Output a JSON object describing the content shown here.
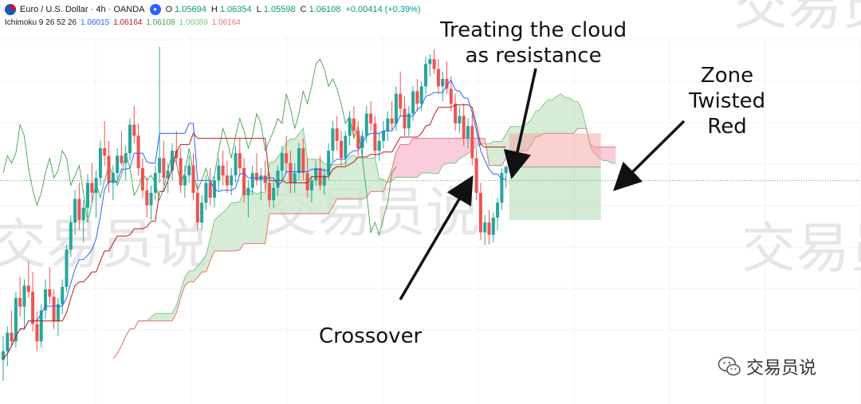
{
  "header": {
    "symbol": "Euro / U.S. Dollar · 4h · OANDA",
    "ohlc": {
      "o_label": "O",
      "o": "1.05694",
      "h_label": "H",
      "h": "1.06354",
      "l_label": "L",
      "l": "1.05598",
      "c_label": "C",
      "c": "1.06108",
      "change": "+0.00414 (+0.39%)"
    },
    "indicator": {
      "name": "Ichimoku 9 26 52 26",
      "values": [
        "1.06015",
        "1.06164",
        "1.06108",
        "1.06089",
        "1.06164"
      ],
      "colors": [
        "#2962ff",
        "#b71c1c",
        "#43a047",
        "#a5d6a7",
        "#ef9a9a"
      ]
    }
  },
  "annotations": {
    "resistance_line1": "Treating the cloud",
    "resistance_line2": "as resistance",
    "crossover": "Crossover",
    "zone_line1": "Zone",
    "zone_line2": "Twisted",
    "zone_line3": "Red"
  },
  "watermark": {
    "text": "交易员说"
  },
  "colors": {
    "bull": "#26a69a",
    "bear": "#ef5350",
    "tenkan": "#2962ff",
    "kijun": "#b71c1c",
    "chikou": "#43a047",
    "cloud_bull": "#c8e6c9",
    "cloud_bear": "#f8bbd0",
    "stop_zone": "#f4a4a4",
    "target_zone": "#a5d6a7"
  },
  "chart_data": {
    "type": "candlestick",
    "symbol": "EURUSD",
    "timeframe": "4h",
    "indicator": "Ichimoku 9 26 52 26",
    "ohlc": [
      [
        1.0455,
        1.0474,
        1.0438,
        1.0462
      ],
      [
        1.0462,
        1.0482,
        1.045,
        1.0477
      ],
      [
        1.0477,
        1.0495,
        1.0466,
        1.047
      ],
      [
        1.047,
        1.051,
        1.0465,
        1.0505
      ],
      [
        1.0505,
        1.0522,
        1.049,
        1.0498
      ],
      [
        1.0498,
        1.052,
        1.048,
        1.0515
      ],
      [
        1.0515,
        1.0535,
        1.0505,
        1.051
      ],
      [
        1.051,
        1.0526,
        1.0478,
        1.0484
      ],
      [
        1.0484,
        1.0494,
        1.0462,
        1.047
      ],
      [
        1.047,
        1.05,
        1.0465,
        1.0495
      ],
      [
        1.0495,
        1.052,
        1.0488,
        1.0512
      ],
      [
        1.0512,
        1.053,
        1.05,
        1.0506
      ],
      [
        1.0506,
        1.0512,
        1.048,
        1.0486
      ],
      [
        1.0486,
        1.0505,
        1.0474,
        1.05
      ],
      [
        1.05,
        1.052,
        1.0492,
        1.0514
      ],
      [
        1.0514,
        1.0548,
        1.051,
        1.0544
      ],
      [
        1.0544,
        1.0572,
        1.0538,
        1.0566
      ],
      [
        1.0566,
        1.0592,
        1.0556,
        1.0585
      ],
      [
        1.0585,
        1.0598,
        1.056,
        1.0568
      ],
      [
        1.0568,
        1.0584,
        1.055,
        1.0578
      ],
      [
        1.0578,
        1.0605,
        1.057,
        1.0598
      ],
      [
        1.0598,
        1.0614,
        1.0582,
        1.059
      ],
      [
        1.059,
        1.0608,
        1.057,
        1.0602
      ],
      [
        1.0602,
        1.0632,
        1.0596,
        1.0626
      ],
      [
        1.0626,
        1.0648,
        1.0612,
        1.062
      ],
      [
        1.062,
        1.0632,
        1.059,
        1.0598
      ],
      [
        1.0598,
        1.0612,
        1.0584,
        1.0606
      ],
      [
        1.0606,
        1.0626,
        1.0598,
        1.062
      ],
      [
        1.062,
        1.064,
        1.0612,
        1.0614
      ],
      [
        1.0614,
        1.0628,
        1.06,
        1.0622
      ],
      [
        1.0622,
        1.065,
        1.0616,
        1.0645
      ],
      [
        1.0645,
        1.066,
        1.063,
        1.0636
      ],
      [
        1.0636,
        1.0646,
        1.0604,
        1.061
      ],
      [
        1.061,
        1.0618,
        1.0586,
        1.0592
      ],
      [
        1.0592,
        1.0602,
        1.057,
        1.058
      ],
      [
        1.058,
        1.0596,
        1.0568,
        1.059
      ],
      [
        1.059,
        1.0612,
        1.0584,
        1.0606
      ],
      [
        1.0606,
        1.0708,
        1.0598,
        1.0618
      ],
      [
        1.0618,
        1.0632,
        1.0596,
        1.0602
      ],
      [
        1.0602,
        1.0614,
        1.059,
        1.0608
      ],
      [
        1.0608,
        1.063,
        1.06,
        1.0624
      ],
      [
        1.0624,
        1.064,
        1.0612,
        1.0618
      ],
      [
        1.0618,
        1.0626,
        1.059,
        1.0596
      ],
      [
        1.0596,
        1.0612,
        1.0586,
        1.0604
      ],
      [
        1.0604,
        1.062,
        1.0598,
        1.0612
      ],
      [
        1.0612,
        1.0622,
        1.0584,
        1.059
      ],
      [
        1.059,
        1.0598,
        1.056,
        1.0566
      ],
      [
        1.0566,
        1.0588,
        1.056,
        1.0582
      ],
      [
        1.0582,
        1.0604,
        1.0576,
        1.0598
      ],
      [
        1.0598,
        1.061,
        1.058,
        1.0586
      ],
      [
        1.0586,
        1.0604,
        1.0578,
        1.06
      ],
      [
        1.06,
        1.0618,
        1.0592,
        1.0612
      ],
      [
        1.0612,
        1.0624,
        1.0596,
        1.0604
      ],
      [
        1.0604,
        1.0616,
        1.059,
        1.0596
      ],
      [
        1.0596,
        1.061,
        1.0588,
        1.0604
      ],
      [
        1.0604,
        1.0628,
        1.0598,
        1.0622
      ],
      [
        1.0622,
        1.0634,
        1.0604,
        1.061
      ],
      [
        1.061,
        1.0618,
        1.0582,
        1.0588
      ],
      [
        1.0588,
        1.06,
        1.057,
        1.0594
      ],
      [
        1.0594,
        1.0612,
        1.0588,
        1.0606
      ],
      [
        1.0606,
        1.0622,
        1.0596,
        1.06
      ],
      [
        1.06,
        1.061,
        1.0584,
        1.0604
      ],
      [
        1.0604,
        1.0616,
        1.0592,
        1.0598
      ],
      [
        1.0598,
        1.0606,
        1.0578,
        1.0584
      ],
      [
        1.0584,
        1.06,
        1.0578,
        1.0594
      ],
      [
        1.0594,
        1.0612,
        1.0588,
        1.0608
      ],
      [
        1.0608,
        1.0628,
        1.06,
        1.0622
      ],
      [
        1.0622,
        1.0636,
        1.0606,
        1.0614
      ],
      [
        1.0614,
        1.0624,
        1.059,
        1.0598
      ],
      [
        1.0598,
        1.0614,
        1.059,
        1.0606
      ],
      [
        1.0606,
        1.063,
        1.06,
        1.0626
      ],
      [
        1.0626,
        1.0634,
        1.06,
        1.0606
      ],
      [
        1.0606,
        1.0618,
        1.0586,
        1.0592
      ],
      [
        1.0592,
        1.0604,
        1.0582,
        1.06
      ],
      [
        1.06,
        1.0616,
        1.0596,
        1.061
      ],
      [
        1.061,
        1.062,
        1.0592,
        1.0596
      ],
      [
        1.0596,
        1.061,
        1.0588,
        1.0604
      ],
      [
        1.0604,
        1.063,
        1.06,
        1.0624
      ],
      [
        1.0624,
        1.0648,
        1.0616,
        1.0642
      ],
      [
        1.0642,
        1.0652,
        1.0624,
        1.0632
      ],
      [
        1.0632,
        1.064,
        1.0612,
        1.0618
      ],
      [
        1.0618,
        1.064,
        1.0612,
        1.0636
      ],
      [
        1.0636,
        1.0656,
        1.0628,
        1.065
      ],
      [
        1.065,
        1.066,
        1.0634,
        1.064
      ],
      [
        1.064,
        1.0648,
        1.062,
        1.0626
      ],
      [
        1.0626,
        1.064,
        1.0618,
        1.0636
      ],
      [
        1.0636,
        1.066,
        1.063,
        1.0654
      ],
      [
        1.0654,
        1.0664,
        1.064,
        1.0646
      ],
      [
        1.0646,
        1.0652,
        1.0618,
        1.0624
      ],
      [
        1.0624,
        1.0638,
        1.0616,
        1.0632
      ],
      [
        1.0632,
        1.0648,
        1.0626,
        1.064
      ],
      [
        1.064,
        1.0656,
        1.0632,
        1.065
      ],
      [
        1.065,
        1.0664,
        1.064,
        1.0646
      ],
      [
        1.0646,
        1.0676,
        1.064,
        1.067
      ],
      [
        1.067,
        1.0688,
        1.0652,
        1.0658
      ],
      [
        1.0658,
        1.0668,
        1.0636,
        1.0642
      ],
      [
        1.0642,
        1.066,
        1.0636,
        1.0654
      ],
      [
        1.0654,
        1.0676,
        1.0648,
        1.0672
      ],
      [
        1.0672,
        1.0682,
        1.0656,
        1.0662
      ],
      [
        1.0662,
        1.068,
        1.0656,
        1.0676
      ],
      [
        1.0676,
        1.07,
        1.067,
        1.0694
      ],
      [
        1.0694,
        1.0702,
        1.0684,
        1.0698
      ],
      [
        1.0698,
        1.0706,
        1.0686,
        1.069
      ],
      [
        1.069,
        1.0698,
        1.067,
        1.0676
      ],
      [
        1.0676,
        1.0688,
        1.0664,
        1.0682
      ],
      [
        1.0682,
        1.0696,
        1.067,
        1.0674
      ],
      [
        1.0674,
        1.0684,
        1.0656,
        1.0662
      ],
      [
        1.0662,
        1.067,
        1.064,
        1.0646
      ],
      [
        1.0646,
        1.066,
        1.0638,
        1.0652
      ],
      [
        1.0652,
        1.0662,
        1.0628,
        1.0634
      ],
      [
        1.0634,
        1.065,
        1.0626,
        1.0644
      ],
      [
        1.0644,
        1.0654,
        1.0612,
        1.0618
      ],
      [
        1.0618,
        1.0626,
        1.0584,
        1.059
      ],
      [
        1.059,
        1.0598,
        1.0552,
        1.0558
      ],
      [
        1.0558,
        1.0572,
        1.0548,
        1.0566
      ],
      [
        1.0566,
        1.0576,
        1.0548,
        1.0556
      ],
      [
        1.0556,
        1.0574,
        1.055,
        1.057
      ],
      [
        1.057,
        1.0586,
        1.056,
        1.0582
      ],
      [
        1.0582,
        1.061,
        1.0576,
        1.0606
      ],
      [
        1.0606,
        1.0612,
        1.0594,
        1.0611
      ]
    ],
    "y_axis": {
      "range": [
        1.042,
        1.072
      ],
      "tick_labels": false
    },
    "grid": true,
    "levels": {
      "last_price": 1.06108,
      "stop_zone": [
        1.0611,
        1.0638
      ],
      "target_zone": [
        1.0568,
        1.0611
      ]
    }
  }
}
